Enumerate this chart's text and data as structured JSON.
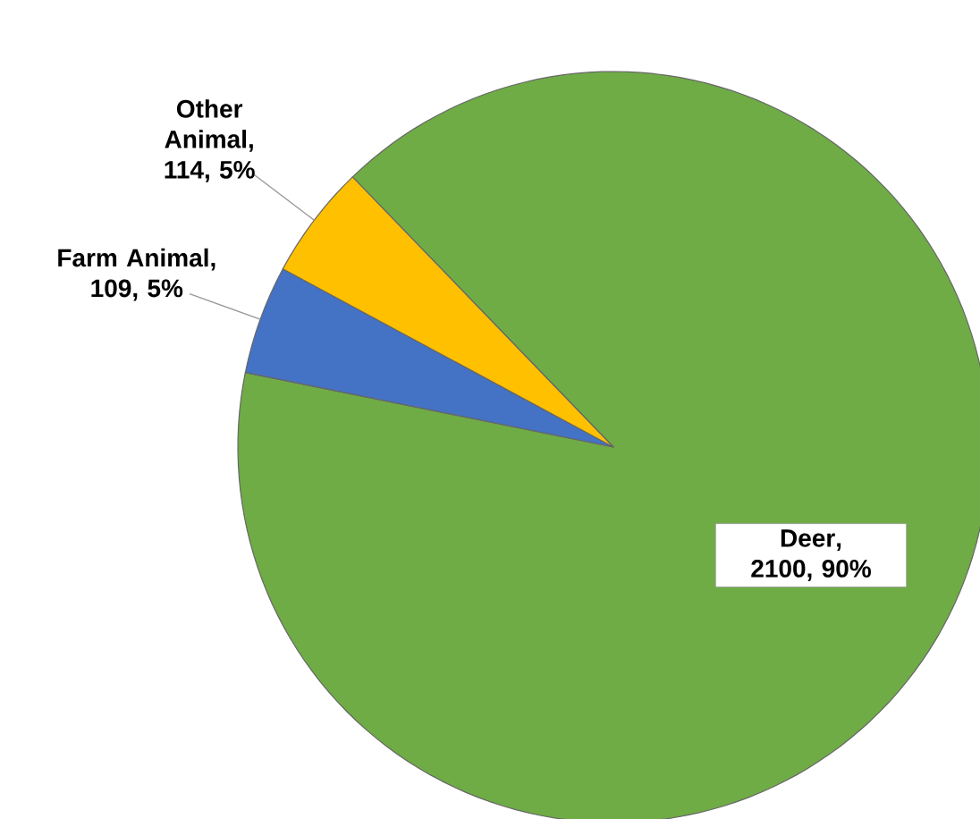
{
  "chart_data": {
    "type": "pie",
    "categories": [
      "Deer",
      "Farm Animal",
      "Other Animal"
    ],
    "values": [
      2100,
      109,
      114
    ],
    "value_labels": [
      ", 2100, 90%",
      ", 109, 5%",
      ", 114, 5%"
    ],
    "colors": [
      "#6fac46",
      "#4472c4",
      "#ffc000"
    ],
    "legend": false
  }
}
